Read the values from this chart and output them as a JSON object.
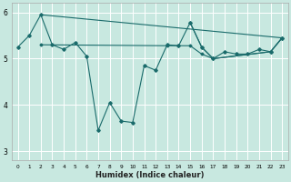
{
  "xlabel": "Humidex (Indice chaleur)",
  "xlim": [
    -0.5,
    23.5
  ],
  "ylim": [
    2.8,
    6.2
  ],
  "yticks": [
    3,
    4,
    5,
    6
  ],
  "xticks": [
    0,
    1,
    2,
    3,
    4,
    5,
    6,
    7,
    8,
    9,
    10,
    11,
    12,
    13,
    14,
    15,
    16,
    17,
    18,
    19,
    20,
    21,
    22,
    23
  ],
  "bg_color": "#c8e8e0",
  "grid_color": "#ffffff",
  "line_color": "#1a6b6b",
  "main_line_x": [
    0,
    1,
    2,
    3,
    4,
    5,
    6,
    7,
    8,
    9,
    10,
    11,
    12,
    13,
    14,
    15,
    16,
    17,
    18,
    19,
    20,
    21,
    22,
    23
  ],
  "main_line_y": [
    5.25,
    5.5,
    5.95,
    5.3,
    5.2,
    5.35,
    5.05,
    3.45,
    4.05,
    3.65,
    3.62,
    4.85,
    4.75,
    5.3,
    5.28,
    5.78,
    5.25,
    5.0,
    5.15,
    5.1,
    5.1,
    5.2,
    5.15,
    5.45
  ],
  "trend1_x": [
    2,
    23
  ],
  "trend1_y": [
    5.95,
    5.45
  ],
  "trend2_x": [
    2,
    13,
    14,
    15,
    16,
    17,
    22,
    23
  ],
  "trend2_y": [
    5.3,
    5.28,
    5.28,
    5.28,
    5.1,
    5.0,
    5.15,
    5.45
  ],
  "trend3_x": [
    15,
    16,
    17,
    22,
    23
  ],
  "trend3_y": [
    5.78,
    5.25,
    5.0,
    5.15,
    5.45
  ]
}
